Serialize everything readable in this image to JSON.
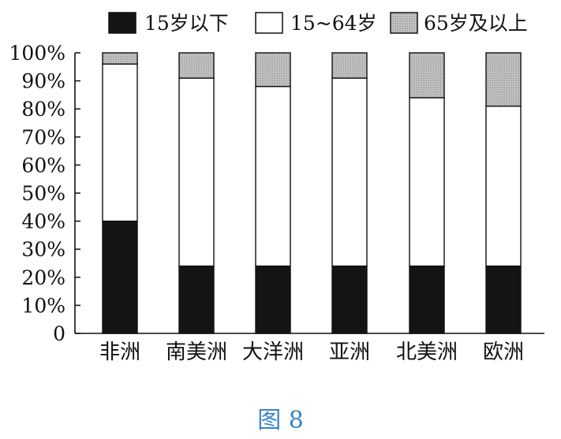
{
  "chart_data": {
    "type": "bar",
    "stacked": true,
    "categories": [
      "非洲",
      "南美洲",
      "大洋洲",
      "亚洲",
      "北美洲",
      "欧洲"
    ],
    "series": [
      {
        "name": "15岁以下",
        "color": "#141414",
        "values": [
          40,
          24,
          24,
          24,
          24,
          24
        ]
      },
      {
        "name": "15~64岁",
        "color": "#ffffff",
        "values": [
          56,
          67,
          64,
          67,
          60,
          57
        ]
      },
      {
        "name": "65岁及以上",
        "color": "#b8b8b8",
        "values": [
          4,
          9,
          12,
          9,
          16,
          19
        ]
      }
    ],
    "y_ticks": [
      "0",
      "10%",
      "20%",
      "30%",
      "40%",
      "50%",
      "60%",
      "70%",
      "80%",
      "90%",
      "100%"
    ],
    "ylim": [
      0,
      100
    ],
    "grid": false,
    "legend_position": "top"
  },
  "caption": "图 8"
}
